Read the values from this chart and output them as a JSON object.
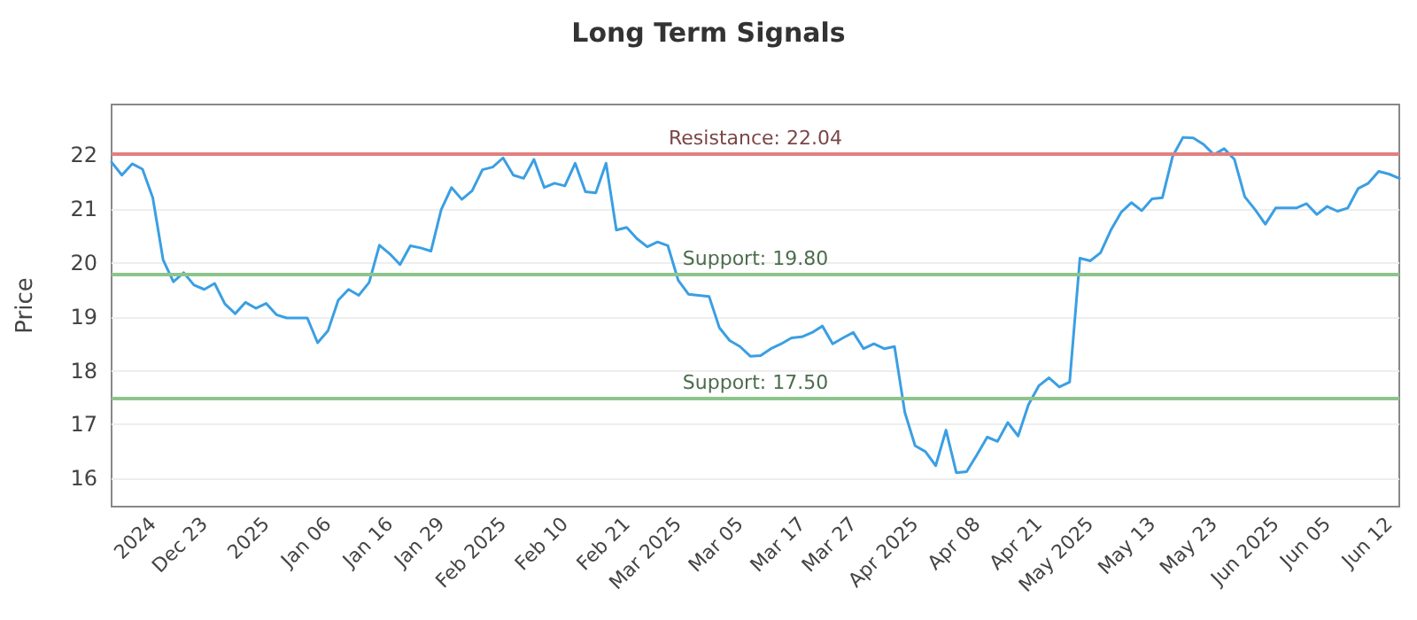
{
  "chart_data": {
    "type": "line",
    "title": "Long Term Signals",
    "ylabel": "Price",
    "categories": [
      null,
      null,
      null,
      null,
      "2024",
      null,
      null,
      null,
      null,
      "Dec 23",
      null,
      null,
      null,
      null,
      null,
      "2025",
      null,
      null,
      null,
      null,
      null,
      "Jan 06",
      null,
      null,
      null,
      null,
      null,
      "Jan 16",
      null,
      null,
      null,
      null,
      "Jan 29",
      null,
      null,
      null,
      null,
      null,
      "Feb 2025",
      null,
      null,
      null,
      null,
      null,
      "Feb 10",
      null,
      null,
      null,
      null,
      null,
      "Feb 21",
      null,
      null,
      null,
      null,
      "Mar 2025",
      null,
      null,
      null,
      null,
      null,
      "Mar 05",
      null,
      null,
      null,
      null,
      null,
      "Mar 17",
      null,
      null,
      null,
      null,
      "Mar 27",
      null,
      null,
      null,
      null,
      null,
      "Apr 2025",
      null,
      null,
      null,
      null,
      null,
      "Apr 08",
      null,
      null,
      null,
      null,
      null,
      "Apr 21",
      null,
      null,
      null,
      null,
      "May 2025",
      null,
      null,
      null,
      null,
      null,
      "May 13",
      null,
      null,
      null,
      null,
      null,
      "May 23",
      null,
      null,
      null,
      null,
      null,
      "Jun 2025",
      null,
      null,
      null,
      null,
      "Jun 05",
      null,
      null,
      null,
      null,
      null,
      "Jun 12",
      null
    ],
    "series": [
      {
        "color": "#3a9fe3",
        "values": [
          21.87,
          21.63,
          21.84,
          21.74,
          21.21,
          20.06,
          19.65,
          19.82,
          19.59,
          19.51,
          19.62,
          19.24,
          19.06,
          19.27,
          19.16,
          19.25,
          19.04,
          18.98,
          18.98,
          18.98,
          18.52,
          18.74,
          19.31,
          19.51,
          19.4,
          19.64,
          20.33,
          20.17,
          19.97,
          20.32,
          20.28,
          20.22,
          20.99,
          21.4,
          21.18,
          21.34,
          21.73,
          21.78,
          21.95,
          21.63,
          21.57,
          21.92,
          21.4,
          21.48,
          21.43,
          21.85,
          21.32,
          21.3,
          21.85,
          20.61,
          20.66,
          20.45,
          20.3,
          20.39,
          20.32,
          19.68,
          19.42,
          19.4,
          19.38,
          18.8,
          18.56,
          18.45,
          18.27,
          18.28,
          18.41,
          18.5,
          18.61,
          18.63,
          18.71,
          18.83,
          18.5,
          18.61,
          18.71,
          18.41,
          18.5,
          18.41,
          18.45,
          17.23,
          16.61,
          16.5,
          16.24,
          16.9,
          16.11,
          16.13,
          16.44,
          16.77,
          16.69,
          17.04,
          16.79,
          17.37,
          17.72,
          17.87,
          17.7,
          17.79,
          20.09,
          20.04,
          20.19,
          20.61,
          20.94,
          21.12,
          20.97,
          21.19,
          21.21,
          21.98,
          22.33,
          22.32,
          22.2,
          22.01,
          22.12,
          21.92,
          21.23,
          20.99,
          20.72,
          21.02,
          21.02,
          21.02,
          21.1,
          20.9,
          21.05,
          20.96,
          21.02,
          21.38,
          21.48,
          21.7,
          21.65,
          21.57
        ]
      }
    ],
    "ylim": [
      15.48,
      22.94
    ],
    "yticks": [
      16,
      17,
      18,
      19,
      20,
      21,
      22
    ],
    "grid": "y",
    "marker": "none",
    "line_style": "solid",
    "ref_lines": [
      {
        "axis": "y",
        "value": 22.04,
        "label": "Resistance: 22.04",
        "color": "#e08080"
      },
      {
        "axis": "y",
        "value": 19.8,
        "label": "Support: 19.80",
        "color": "#8cc48c"
      },
      {
        "axis": "y",
        "value": 17.5,
        "label": "Support: 17.50",
        "color": "#8cc48c"
      }
    ]
  }
}
